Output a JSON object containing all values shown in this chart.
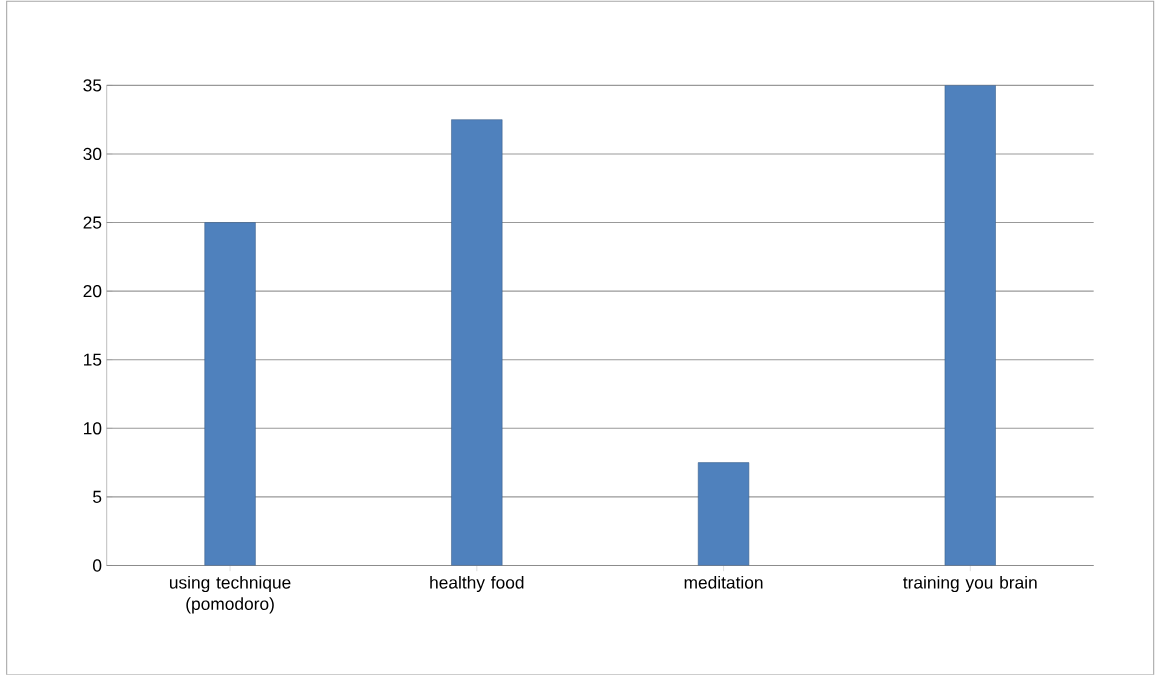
{
  "chart_data": {
    "type": "bar",
    "categories": [
      "using technique (pomodoro)",
      "healthy food",
      "meditation",
      "training you brain"
    ],
    "values": [
      25,
      32.5,
      7.5,
      35
    ],
    "color": "#4f81bd",
    "ylim": [
      0,
      35
    ],
    "yticks": [
      0,
      5,
      10,
      15,
      20,
      25,
      30,
      35
    ],
    "grid": "y"
  }
}
